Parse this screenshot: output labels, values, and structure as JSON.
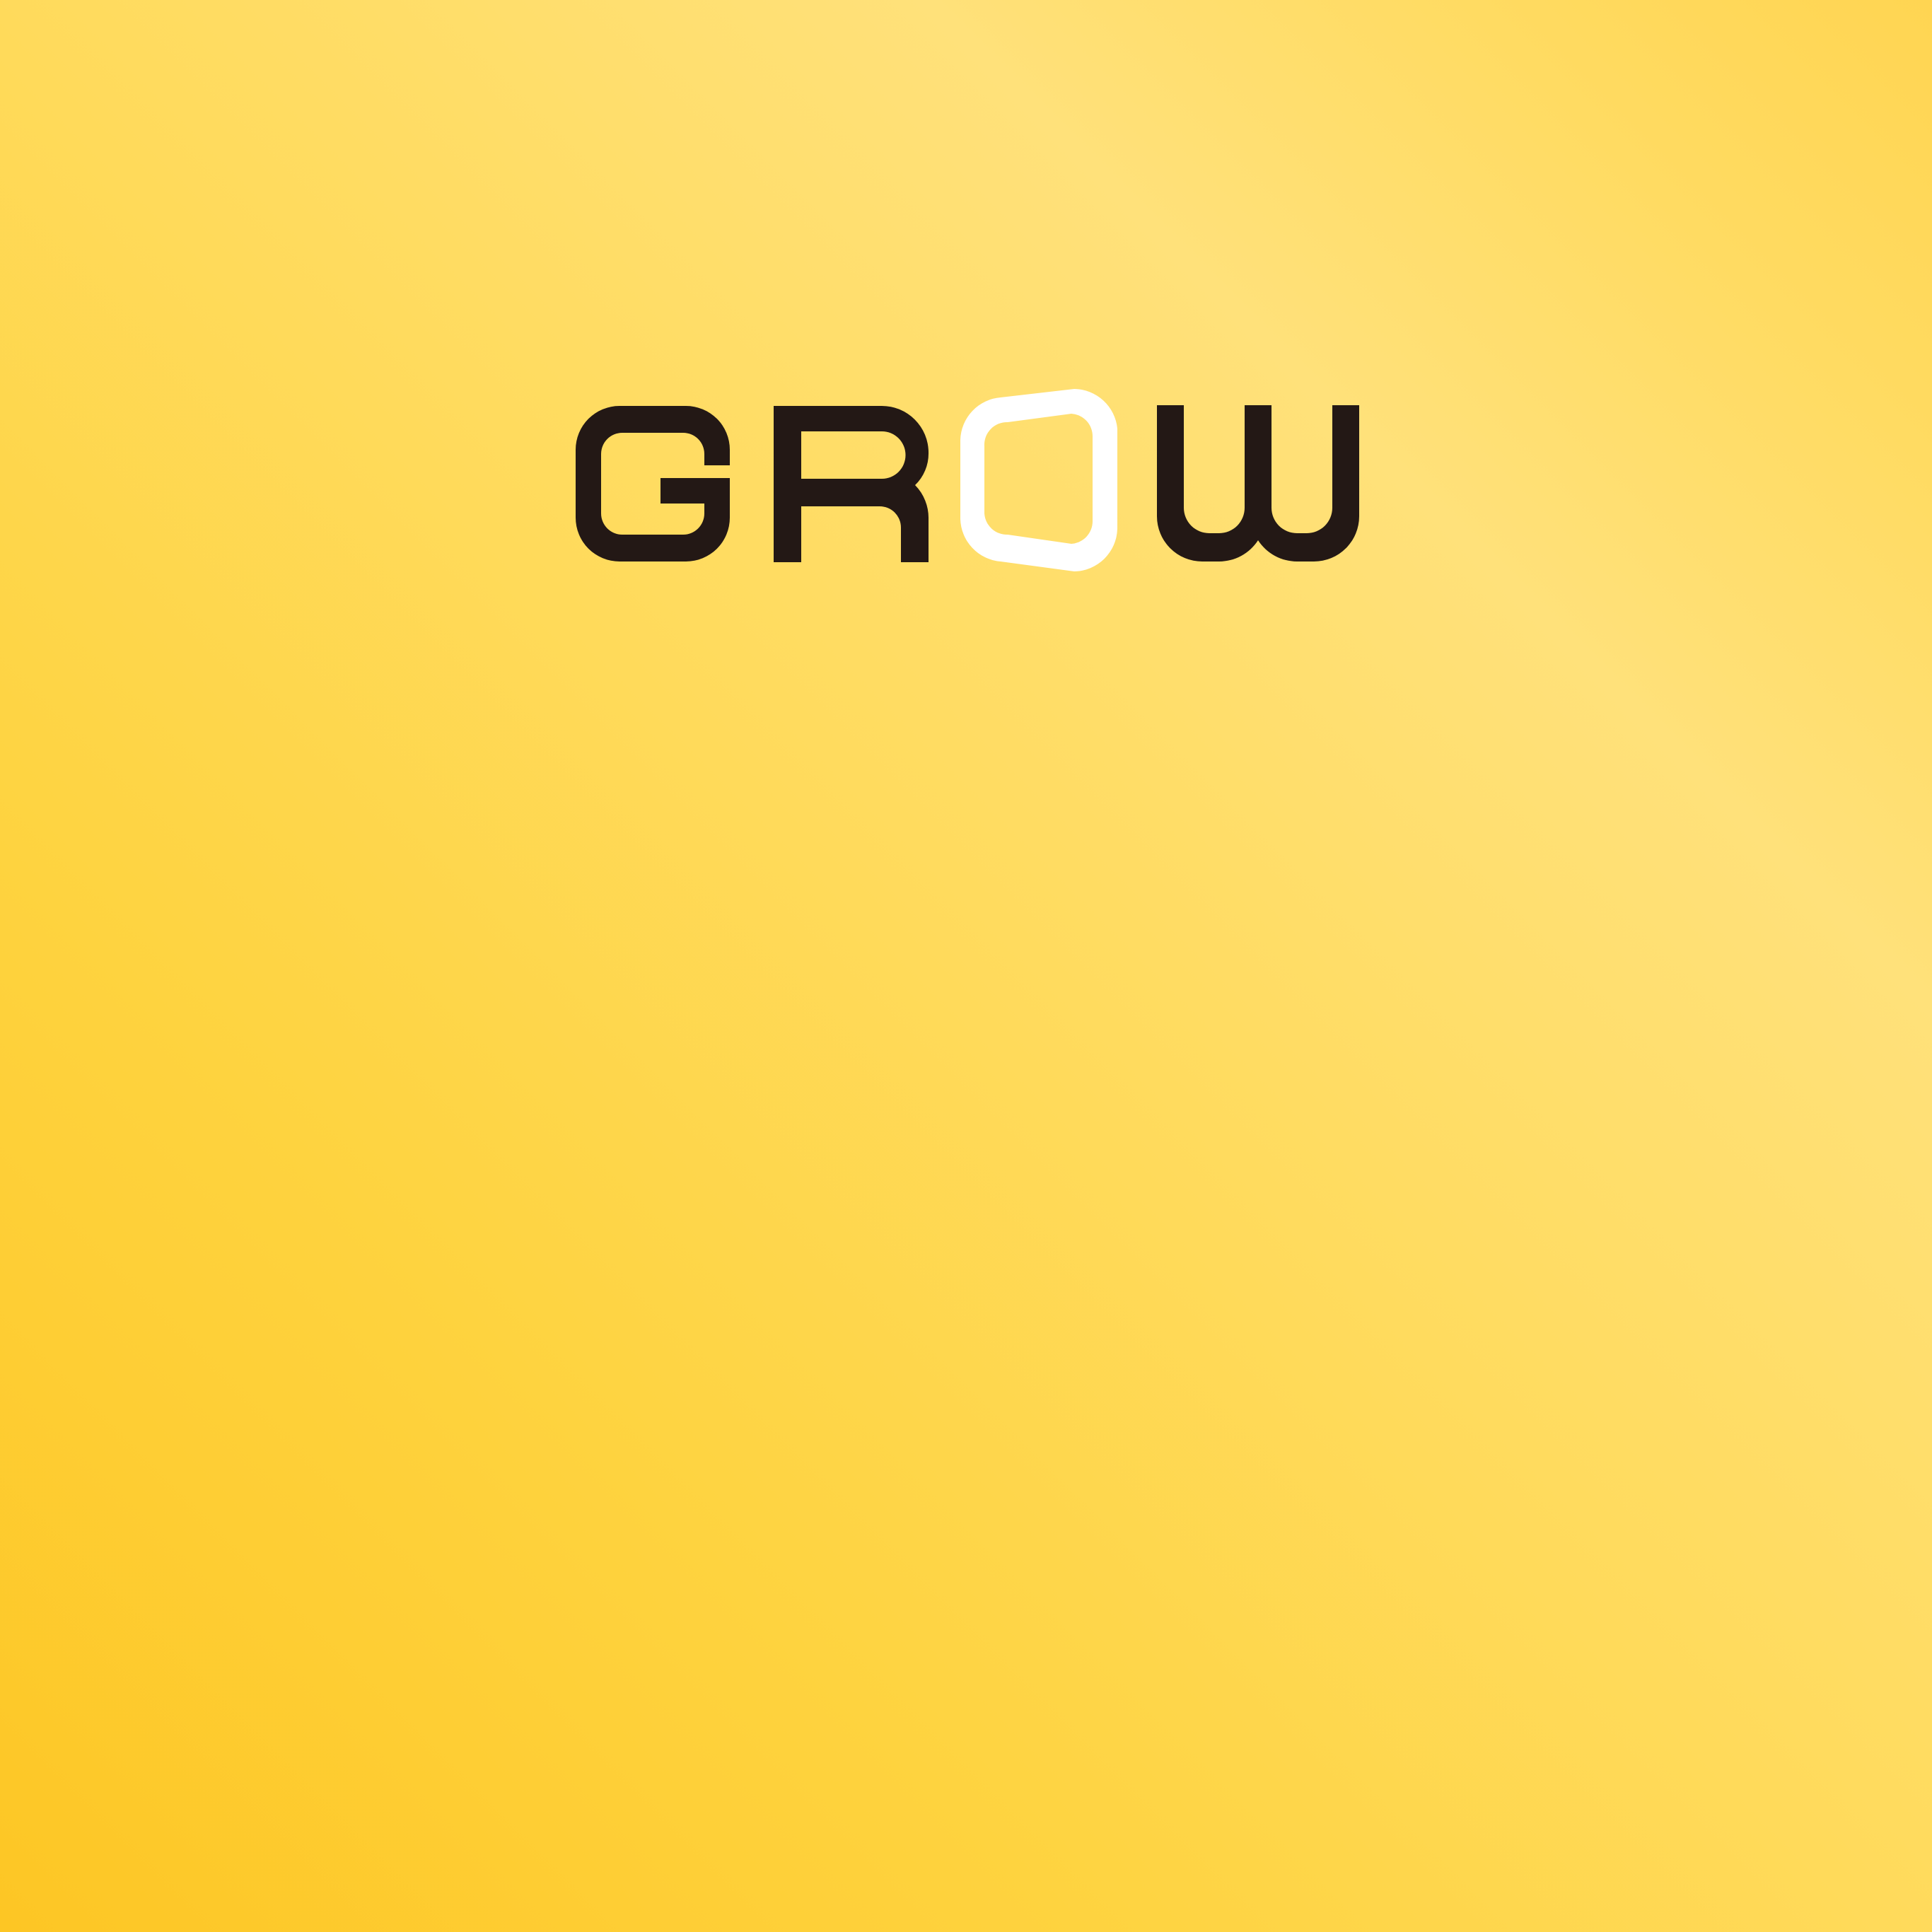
{
  "brand": {
    "wordmark": "GROW",
    "letters": [
      "G",
      "R",
      "O",
      "W"
    ],
    "colors": {
      "background_light": "#ffe17a",
      "background_dark": "#fdc624",
      "letter_dark": "#231815",
      "letter_accent": "#ffffff"
    }
  }
}
